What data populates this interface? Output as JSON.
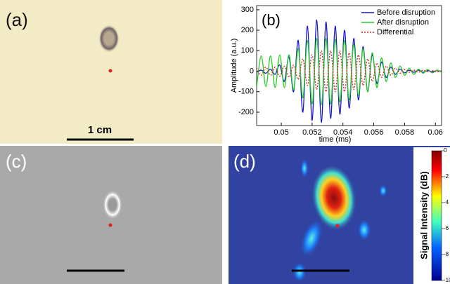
{
  "chart_data": {
    "type": "line",
    "title": "(b)",
    "xlabel": "time (ms)",
    "ylabel": "Amplitude (a.u.)",
    "x": [
      0.0484,
      0.0487,
      0.049,
      0.0493,
      0.0496,
      0.0499,
      0.0502,
      0.0505,
      0.0508,
      0.0511,
      0.0514,
      0.0517,
      0.052,
      0.0523,
      0.0526,
      0.0529,
      0.0532,
      0.0535,
      0.0538,
      0.0541,
      0.0544,
      0.0547,
      0.055,
      0.0553,
      0.0556,
      0.0559,
      0.0562,
      0.0565,
      0.0568,
      0.0571,
      0.0574,
      0.0577,
      0.058,
      0.0583,
      0.0586,
      0.0589,
      0.0592,
      0.0595,
      0.0598,
      0.0601,
      0.0604
    ],
    "series": [
      {
        "name": "Before disruption",
        "color": "#1515d0",
        "dash": false,
        "values": [
          -5,
          5,
          -10,
          10,
          -15,
          30,
          -50,
          70,
          -100,
          150,
          -200,
          220,
          -240,
          250,
          -250,
          240,
          -230,
          220,
          -210,
          200,
          -180,
          160,
          -140,
          120,
          -100,
          80,
          -60,
          45,
          -30,
          20,
          -15,
          10,
          -8,
          5,
          -5,
          5,
          -5,
          3,
          -3,
          3,
          -3
        ]
      },
      {
        "name": "After disruption",
        "color": "#22cc22",
        "dash": false,
        "values": [
          -75,
          75,
          -75,
          75,
          -80,
          80,
          -80,
          80,
          -90,
          110,
          -130,
          150,
          -160,
          160,
          -165,
          160,
          -160,
          155,
          -150,
          150,
          -140,
          130,
          -120,
          110,
          -100,
          90,
          -80,
          65,
          -50,
          40,
          -30,
          25,
          -20,
          15,
          -15,
          10,
          -10,
          8,
          -8,
          5,
          -5
        ]
      },
      {
        "name": "Differential",
        "color": "#dd2222",
        "dash": true,
        "values": [
          15,
          -20,
          20,
          -20,
          20,
          -25,
          25,
          -30,
          30,
          -40,
          60,
          -70,
          80,
          -90,
          100,
          -100,
          100,
          -100,
          100,
          -100,
          90,
          -90,
          80,
          -70,
          60,
          -50,
          40,
          -30,
          25,
          -20,
          15,
          -10,
          8,
          -5,
          5,
          -5,
          5,
          -3,
          3,
          -3,
          3
        ]
      }
    ],
    "xlim": [
      0.0484,
      0.0604
    ],
    "ylim": [
      -265,
      320
    ],
    "xticks": [
      0.05,
      0.052,
      0.054,
      0.056,
      0.058,
      0.06
    ],
    "yticks": [
      -200,
      -100,
      0,
      100,
      200,
      300
    ],
    "legend": "northeast"
  },
  "panels": {
    "a": "(a)",
    "c": "(c)",
    "d": "(d)",
    "scale_label": "1 cm"
  },
  "colorbar": {
    "label": "Signal Intensity (dB)",
    "lim": [
      -10,
      0
    ],
    "ticks": [
      0,
      -2,
      -4,
      -6,
      -8,
      -10
    ]
  }
}
